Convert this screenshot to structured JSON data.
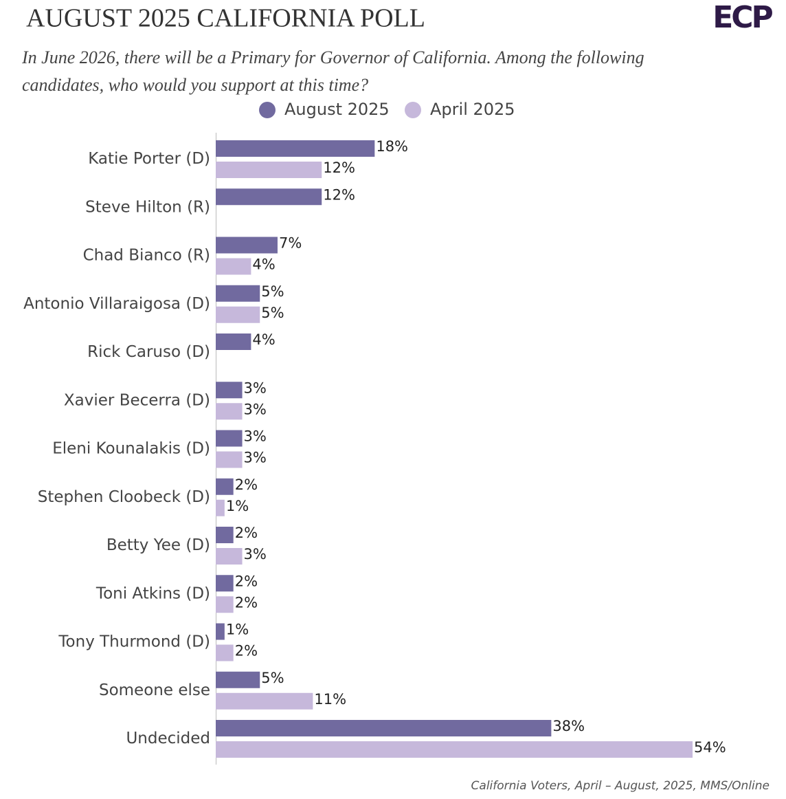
{
  "chart_data": {
    "type": "barh",
    "title": "AUGUST 2025 CALIFORNIA POLL",
    "logo": "ECP",
    "subtitle": "In June 2026, there will be a Primary for Governor of California. Among the following candidates, who would you support at this time?",
    "footer": "California Voters, April  – August, 2025, MMS/Online",
    "categories": [
      "Katie Porter (D)",
      "Steve Hilton (R)",
      "Chad Bianco (R)",
      "Antonio Villaraigosa (D)",
      "Rick Caruso (D)",
      "Xavier Becerra (D)",
      "Eleni Kounalakis (D)",
      "Stephen Cloobeck (D)",
      "Betty Yee (D)",
      "Toni Atkins (D)",
      "Tony Thurmond (D)",
      "Someone else",
      "Undecided"
    ],
    "series": [
      {
        "name": "August 2025",
        "color": "#716a9f",
        "values": [
          18,
          12,
          7,
          5,
          4,
          3,
          3,
          2,
          2,
          2,
          1,
          5,
          38
        ],
        "value_labels": [
          "18%",
          "12%",
          "7%",
          "5%",
          "4%",
          "3%",
          "3%",
          "2%",
          "2%",
          "2%",
          "1%",
          "5%",
          "38%"
        ]
      },
      {
        "name": "April 2025",
        "color": "#c6b8db",
        "values": [
          12,
          null,
          4,
          5,
          null,
          3,
          3,
          1,
          3,
          2,
          2,
          11,
          54
        ],
        "value_labels": [
          "12%",
          null,
          "4%",
          "5%",
          null,
          "3%",
          "3%",
          "1%",
          "3%",
          "2%",
          "2%",
          "11%",
          "54%"
        ]
      }
    ],
    "xlim": [
      0,
      54
    ],
    "legend": "top"
  }
}
